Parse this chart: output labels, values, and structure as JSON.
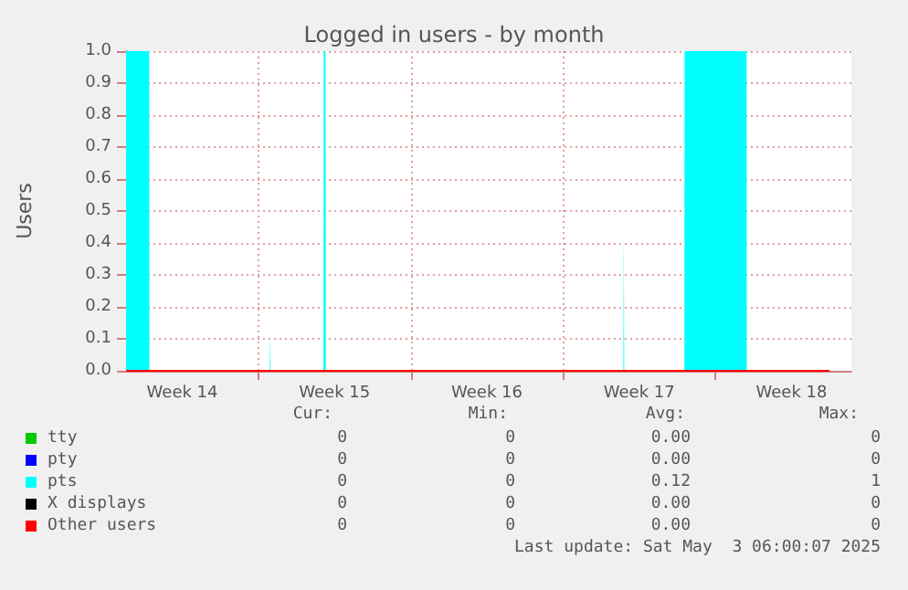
{
  "chart_data": {
    "type": "area",
    "title": "Logged in users - by month",
    "ylabel": "Users",
    "xlim": [
      "2025-03-31T22:00",
      "2025-05-04T06:00"
    ],
    "xticks": [
      {
        "value": "2025-04-03T12:00",
        "label": "Week 14"
      },
      {
        "value": "2025-04-07T00:00",
        "label": null
      },
      {
        "value": "2025-04-10T12:00",
        "label": "Week 15"
      },
      {
        "value": "2025-04-14T00:00",
        "label": null
      },
      {
        "value": "2025-04-17T12:00",
        "label": "Week 16"
      },
      {
        "value": "2025-04-21T00:00",
        "label": null
      },
      {
        "value": "2025-04-24T12:00",
        "label": "Week 17"
      },
      {
        "value": "2025-04-28T00:00",
        "label": null
      },
      {
        "value": "2025-05-01T12:00",
        "label": "Week 18"
      }
    ],
    "ylim": [
      0,
      1
    ],
    "yticks": [
      {
        "value": 0,
        "label": "0.0"
      },
      {
        "value": 0.1,
        "label": "0.1"
      },
      {
        "value": 0.2,
        "label": "0.2"
      },
      {
        "value": 0.3,
        "label": "0.3"
      },
      {
        "value": 0.4,
        "label": "0.4"
      },
      {
        "value": 0.5,
        "label": "0.5"
      },
      {
        "value": 0.6,
        "label": "0.6"
      },
      {
        "value": 0.7,
        "label": "0.7"
      },
      {
        "value": 0.8,
        "label": "0.8"
      },
      {
        "value": 0.9,
        "label": "0.9"
      },
      {
        "value": 1,
        "label": "1.0"
      }
    ],
    "grid": true,
    "legend": "bottom",
    "series": [
      {
        "name": "tty",
        "color": "#00cc00",
        "type": "line"
      },
      {
        "name": "pty",
        "color": "#0000ff",
        "type": "line"
      },
      {
        "name": "pts",
        "color": "#00ffff",
        "x": [
          "2025-03-31T22:00",
          "2025-04-01T23:30",
          "2025-04-01T23:40",
          "2025-04-07T12:30",
          "2025-04-07T13:00",
          "2025-04-07T13:30",
          "2025-04-09T23:40",
          "2025-04-10T00:00",
          "2025-04-10T02:00",
          "2025-04-10T02:20",
          "2025-04-23T18:30",
          "2025-04-23T19:00",
          "2025-04-23T19:30",
          "2025-04-26T13:50",
          "2025-04-26T14:00",
          "2025-04-29T10:30",
          "2025-04-29T10:40",
          "2025-05-03T06:00"
        ],
        "values": [
          1,
          1,
          0,
          0,
          0.11,
          0,
          0,
          1,
          1,
          0,
          0,
          0.45,
          0,
          0,
          1,
          1,
          0,
          0
        ]
      },
      {
        "name": "X displays",
        "color": "#000000",
        "type": "line"
      },
      {
        "name": "Other users",
        "color": "#ff0000",
        "type": "line",
        "x": [
          "2025-03-31T22:00",
          "2025-05-03T06:00"
        ],
        "values": [
          0,
          0
        ]
      }
    ],
    "annotations": [
      "Cur:",
      "Min:",
      "Avg:",
      "Max:",
      "0",
      "0",
      "0.00",
      "0",
      "0",
      "0",
      "0.00",
      "0",
      "0",
      "0",
      "0.12",
      "1",
      "0",
      "0",
      "0.00",
      "0",
      "0",
      "0",
      "0.00",
      "0",
      "Last update: Sat May  3 06:00:07 2025"
    ]
  }
}
